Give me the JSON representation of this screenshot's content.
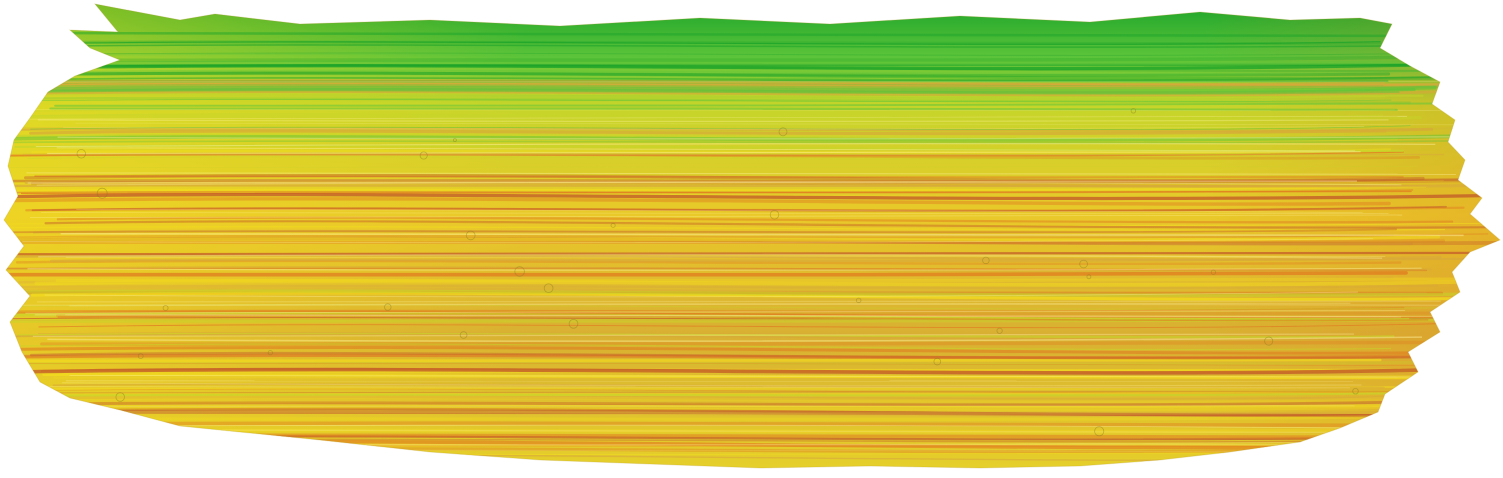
{
  "image": {
    "subject": "brush-stroke",
    "background_color": "#ffffff",
    "palette": {
      "green_dark": "#1aa32a",
      "green": "#5cc43a",
      "yellow_green": "#c6d52a",
      "yellow": "#f2dc1e",
      "ochre": "#d7a83a",
      "orange": "#e07a20",
      "rust": "#c0552a"
    }
  }
}
